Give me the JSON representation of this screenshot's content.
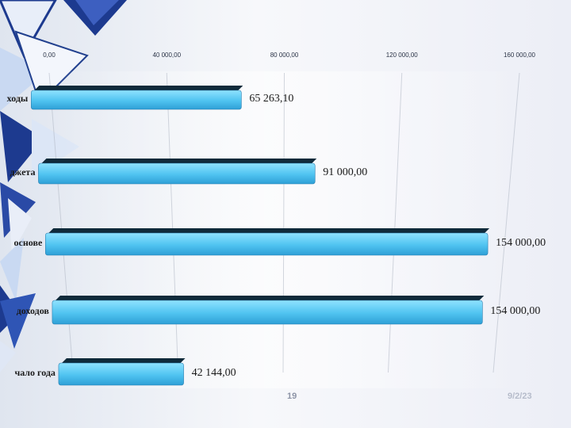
{
  "slide": {
    "page_number": "19",
    "date": "9/2/23"
  },
  "colors": {
    "bar_main": "#4fc3f0",
    "bar_light": "#8fe2ff",
    "bar_top": "#0f2a3a",
    "grid": "#b0b7c4",
    "tick_text": "#2b3447",
    "decor_dark": "#1d3a8f",
    "decor_light": "#c9d9f2"
  },
  "chart_data": {
    "type": "bar",
    "orientation": "horizontal",
    "categories": [
      "ходы",
      "джета",
      "основе",
      "доходов",
      "чало года"
    ],
    "values": [
      65263.1,
      91000.0,
      154000.0,
      154000.0,
      42144.0
    ],
    "value_labels": [
      "65 263,10",
      "91 000,00",
      "154 000,00",
      "154 000,00",
      "42 144,00"
    ],
    "x_ticks": [
      0,
      40000,
      80000,
      120000,
      160000
    ],
    "x_tick_labels": [
      "0,00",
      "40 000,00",
      "80 000,00",
      "120 000,00",
      "160 000,00"
    ],
    "xlim": [
      0,
      160000
    ],
    "grid": true,
    "legend": "none"
  }
}
